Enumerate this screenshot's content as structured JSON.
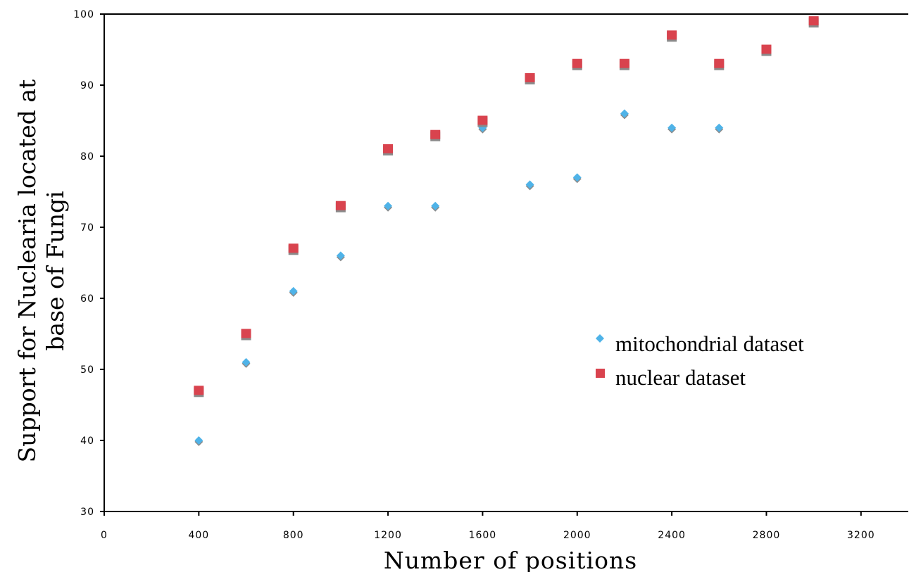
{
  "chart_data": {
    "type": "scatter",
    "xlabel": "Number of positions",
    "ylabel": "Support for Nuclearia located at base of Fungi",
    "ylabel_lines": [
      "Support for Nuclearia located at",
      "base of Fungi"
    ],
    "xlim": [
      0,
      3400
    ],
    "ylim": [
      30,
      100
    ],
    "xticks": [
      0,
      400,
      800,
      1200,
      1600,
      2000,
      2400,
      2800,
      3200
    ],
    "yticks": [
      30,
      40,
      50,
      60,
      70,
      80,
      90,
      100
    ],
    "grid": false,
    "legend_position": "center-right",
    "series": [
      {
        "name": "mitochondrial dataset",
        "marker": "diamond",
        "color": "#4fb3e8",
        "points": [
          [
            400,
            40
          ],
          [
            600,
            51
          ],
          [
            800,
            61
          ],
          [
            1000,
            66
          ],
          [
            1200,
            73
          ],
          [
            1400,
            73
          ],
          [
            1600,
            84
          ],
          [
            1800,
            76
          ],
          [
            2000,
            77
          ],
          [
            2200,
            86
          ],
          [
            2400,
            84
          ],
          [
            2600,
            84
          ]
        ]
      },
      {
        "name": "nuclear dataset",
        "marker": "square",
        "color": "#d9434e",
        "points": [
          [
            400,
            47
          ],
          [
            600,
            55
          ],
          [
            800,
            67
          ],
          [
            1000,
            73
          ],
          [
            1200,
            81
          ],
          [
            1400,
            83
          ],
          [
            1600,
            85
          ],
          [
            1800,
            91
          ],
          [
            2000,
            93
          ],
          [
            2200,
            93
          ],
          [
            2400,
            97
          ],
          [
            2600,
            93
          ],
          [
            2800,
            95
          ],
          [
            3000,
            99
          ]
        ]
      }
    ]
  }
}
